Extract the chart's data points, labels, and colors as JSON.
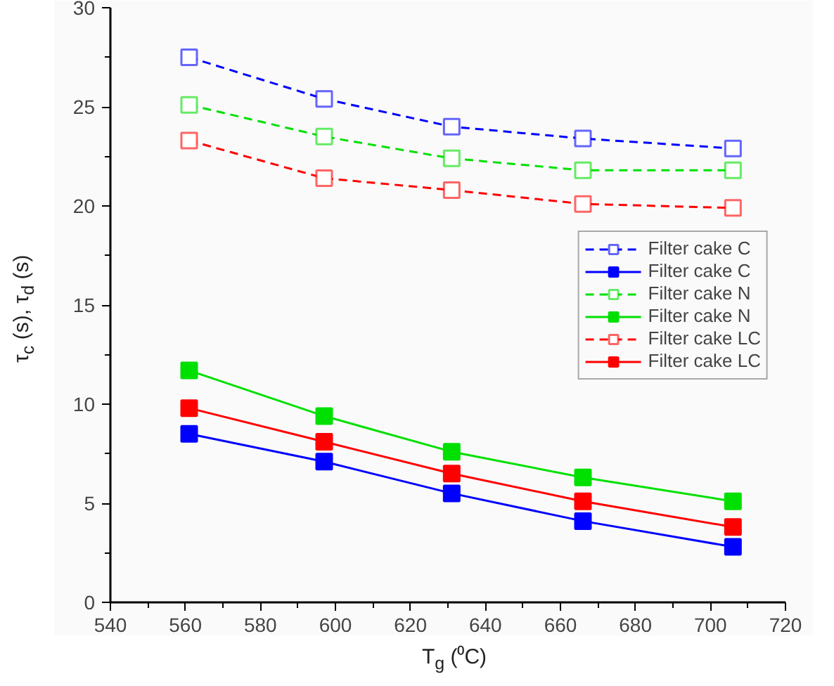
{
  "chart_data": {
    "type": "line",
    "xlabel": "T$_{g}$ (⁰C)",
    "ylabel": "τ$_{c}$ (s), τ$_{d}$ (s)",
    "x": [
      561,
      597,
      631,
      666,
      706
    ],
    "xlim": [
      540,
      720
    ],
    "xticks": [
      540,
      560,
      580,
      600,
      620,
      640,
      660,
      680,
      700,
      720
    ],
    "ylim": [
      0,
      30
    ],
    "yticks": [
      0,
      5,
      10,
      15,
      20,
      25,
      30
    ],
    "grid": false,
    "legend": "right",
    "marker": "square",
    "series": [
      {
        "name": "Filter cake C",
        "color": "#0000ff",
        "line_style": "dashed",
        "values": [
          27.5,
          25.4,
          24.0,
          23.4,
          22.9
        ]
      },
      {
        "name": "Filter cake C",
        "color": "#0000ff",
        "line_style": "solid",
        "values": [
          8.5,
          7.1,
          5.5,
          4.1,
          2.8
        ]
      },
      {
        "name": "Filter cake N",
        "color": "#00e000",
        "line_style": "dashed",
        "values": [
          25.1,
          23.5,
          22.4,
          21.8,
          21.8
        ]
      },
      {
        "name": "Filter cake N",
        "color": "#00e000",
        "line_style": "solid",
        "values": [
          11.7,
          9.4,
          7.6,
          6.3,
          5.1
        ]
      },
      {
        "name": "Filter cake LC",
        "color": "#ff0000",
        "line_style": "dashed",
        "values": [
          23.3,
          21.4,
          20.8,
          20.1,
          19.9
        ]
      },
      {
        "name": "Filter cake LC",
        "color": "#ff0000",
        "line_style": "solid",
        "values": [
          9.8,
          8.1,
          6.5,
          5.1,
          3.8
        ]
      }
    ]
  }
}
